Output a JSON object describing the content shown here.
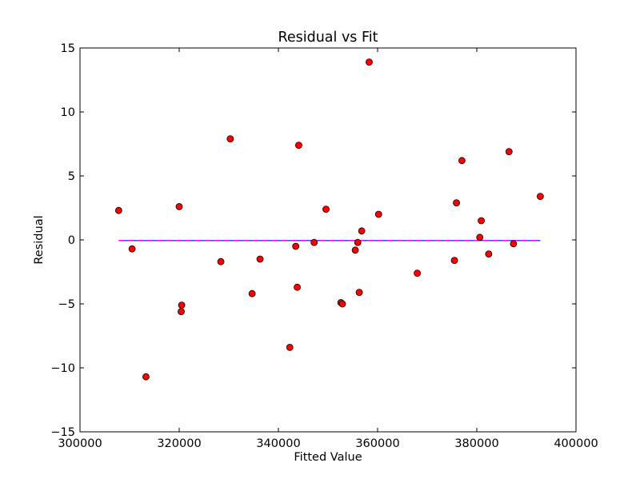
{
  "chart_data": {
    "type": "scatter",
    "title": "Residual vs Fit",
    "xlabel": "Fitted Value",
    "ylabel": "Residual",
    "xlim": [
      300000,
      400000
    ],
    "ylim": [
      -15,
      15
    ],
    "xticks": [
      300000,
      320000,
      340000,
      360000,
      380000,
      400000
    ],
    "yticks": [
      -15,
      -10,
      -5,
      0,
      5,
      10,
      15
    ],
    "x_tick_labels": [
      "300000",
      "320000",
      "340000",
      "360000",
      "380000",
      "400000"
    ],
    "y_tick_labels": [
      "−15",
      "−10",
      "−5",
      "0",
      "5",
      "10",
      "15"
    ],
    "grid": false,
    "legend": "none",
    "series": [
      {
        "marker": "circle",
        "color": "#ff0000",
        "edge_color": "#000000",
        "points": [
          {
            "x": 307800,
            "y": 2.3
          },
          {
            "x": 310500,
            "y": -0.7
          },
          {
            "x": 313300,
            "y": -10.7
          },
          {
            "x": 320000,
            "y": 2.6
          },
          {
            "x": 320400,
            "y": -5.6
          },
          {
            "x": 320500,
            "y": -5.1
          },
          {
            "x": 328400,
            "y": -1.7
          },
          {
            "x": 330300,
            "y": 7.9
          },
          {
            "x": 334700,
            "y": -4.2
          },
          {
            "x": 336300,
            "y": -1.5
          },
          {
            "x": 342300,
            "y": -8.4
          },
          {
            "x": 343500,
            "y": -0.5
          },
          {
            "x": 343800,
            "y": -3.7
          },
          {
            "x": 344100,
            "y": 7.4
          },
          {
            "x": 347200,
            "y": -0.2
          },
          {
            "x": 349600,
            "y": 2.4
          },
          {
            "x": 352600,
            "y": -4.9
          },
          {
            "x": 352900,
            "y": -5.0
          },
          {
            "x": 355500,
            "y": -0.8
          },
          {
            "x": 356000,
            "y": -0.2
          },
          {
            "x": 356300,
            "y": -4.1
          },
          {
            "x": 356800,
            "y": 0.7
          },
          {
            "x": 358300,
            "y": 13.9
          },
          {
            "x": 360200,
            "y": 2.0
          },
          {
            "x": 368000,
            "y": -2.6
          },
          {
            "x": 375500,
            "y": -1.6
          },
          {
            "x": 375900,
            "y": 2.9
          },
          {
            "x": 377000,
            "y": 6.2
          },
          {
            "x": 380600,
            "y": 0.2
          },
          {
            "x": 380900,
            "y": 1.5
          },
          {
            "x": 382400,
            "y": -1.1
          },
          {
            "x": 386500,
            "y": 6.9
          },
          {
            "x": 387400,
            "y": -0.3
          },
          {
            "x": 392800,
            "y": 3.4
          }
        ]
      }
    ],
    "reference_lines": [
      {
        "style": "solid",
        "color": "#0000ff",
        "x": [
          307800,
          392800
        ],
        "y": [
          -0.05,
          -0.05
        ]
      },
      {
        "style": "dashed",
        "color": "#ff00ff",
        "x": [
          307800,
          392800
        ],
        "y": [
          -0.05,
          -0.05
        ]
      }
    ]
  }
}
